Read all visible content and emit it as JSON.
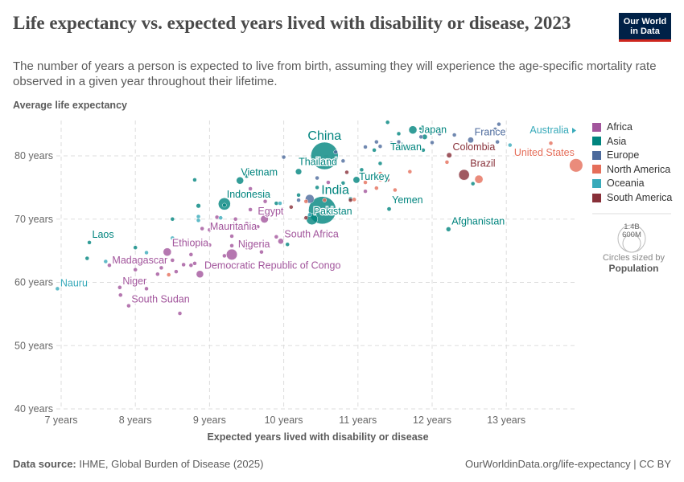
{
  "header": {
    "title": "Life expectancy vs. expected years lived with disability or disease, 2023",
    "subtitle": "The number of years a person is expected to live from birth, assuming they will experience the age-specific mortality rate observed in a given year throughout their lifetime.",
    "logo": "Our World in Data"
  },
  "footer": {
    "source_label": "Data source:",
    "source": "IHME, Global Burden of Disease (2025)",
    "link": "OurWorldinData.org/life-expectancy | CC BY"
  },
  "legend": {
    "items": [
      {
        "label": "Africa",
        "color": "#a2559c"
      },
      {
        "label": "Asia",
        "color": "#00847e"
      },
      {
        "label": "Europe",
        "color": "#4c6a9c"
      },
      {
        "label": "North America",
        "color": "#e56e5a"
      },
      {
        "label": "Oceania",
        "color": "#38aaba"
      },
      {
        "label": "South America",
        "color": "#883039"
      }
    ],
    "size_title": "Circles sized by",
    "size_var": "Population",
    "size_big": "1.4B",
    "size_small": "600M"
  },
  "chart_data": {
    "type": "scatter",
    "xlabel": "Expected years lived with disability or disease",
    "ylabel": "Average life expectancy",
    "xlim": [
      6.85,
      14.0
    ],
    "ylim": [
      40,
      86
    ],
    "x_ticks": [
      {
        "v": 7,
        "label": "7 years"
      },
      {
        "v": 8,
        "label": "8 years"
      },
      {
        "v": 9,
        "label": "9 years"
      },
      {
        "v": 10,
        "label": "10 years"
      },
      {
        "v": 11,
        "label": "11 years"
      },
      {
        "v": 12,
        "label": "12 years"
      },
      {
        "v": 13,
        "label": "13 years"
      }
    ],
    "y_ticks": [
      {
        "v": 40,
        "label": "40 years"
      },
      {
        "v": 50,
        "label": "50 years"
      },
      {
        "v": 60,
        "label": "60 years"
      },
      {
        "v": 70,
        "label": "70 years"
      },
      {
        "v": 80,
        "label": "80 years"
      }
    ],
    "grid": true,
    "legend_placement": "right",
    "points": [
      {
        "name": "China",
        "region": "Asia",
        "x": 10.55,
        "y": 80.0,
        "pop": 1410,
        "label": true,
        "big": true
      },
      {
        "name": "India",
        "region": "Asia",
        "x": 10.52,
        "y": 71.4,
        "pop": 1430,
        "label": true,
        "big": true
      },
      {
        "name": "Pakistan",
        "region": "Asia",
        "x": 10.38,
        "y": 70.0,
        "pop": 240,
        "label": true
      },
      {
        "name": "Thailand",
        "region": "Asia",
        "x": 10.2,
        "y": 77.5,
        "pop": 72,
        "label": true
      },
      {
        "name": "Vietnam",
        "region": "Asia",
        "x": 9.41,
        "y": 76.1,
        "pop": 99,
        "label": true
      },
      {
        "name": "Indonesia",
        "region": "Asia",
        "x": 9.2,
        "y": 72.4,
        "pop": 280,
        "label": true
      },
      {
        "name": "Laos",
        "region": "Asia",
        "x": 7.38,
        "y": 66.3,
        "pop": 8,
        "label": true
      },
      {
        "name": "Japan",
        "region": "Asia",
        "x": 11.74,
        "y": 84.1,
        "pop": 124,
        "label": true
      },
      {
        "name": "Taiwan",
        "region": "Asia",
        "x": 11.88,
        "y": 80.9,
        "pop": 23,
        "label": true
      },
      {
        "name": "Turkey",
        "region": "Asia",
        "x": 10.98,
        "y": 76.2,
        "pop": 85,
        "label": true
      },
      {
        "name": "Yemen",
        "region": "Asia",
        "x": 11.42,
        "y": 71.6,
        "pop": 34,
        "label": true
      },
      {
        "name": "Afghanistan",
        "region": "Asia",
        "x": 12.22,
        "y": 68.4,
        "pop": 42,
        "label": true
      },
      {
        "name": "Egypt",
        "region": "Africa",
        "x": 9.74,
        "y": 70.0,
        "pop": 112,
        "label": true
      },
      {
        "name": "Mauritania",
        "region": "Africa",
        "x": 9.65,
        "y": 68.8,
        "pop": 5,
        "label": true
      },
      {
        "name": "South Africa",
        "region": "Africa",
        "x": 9.96,
        "y": 66.5,
        "pop": 60,
        "label": true
      },
      {
        "name": "Nigeria",
        "region": "Africa",
        "x": 9.3,
        "y": 64.4,
        "pop": 225,
        "label": true
      },
      {
        "name": "Ethiopia",
        "region": "Africa",
        "x": 8.43,
        "y": 64.8,
        "pop": 125,
        "label": true
      },
      {
        "name": "Democratic Republic of Congo",
        "region": "Africa",
        "x": 8.87,
        "y": 61.3,
        "pop": 100,
        "label": true
      },
      {
        "name": "Madagascar",
        "region": "Africa",
        "x": 7.65,
        "y": 62.7,
        "pop": 30,
        "label": true
      },
      {
        "name": "Niger",
        "region": "Africa",
        "x": 7.79,
        "y": 59.2,
        "pop": 27,
        "label": true
      },
      {
        "name": "South Sudan",
        "region": "Africa",
        "x": 7.91,
        "y": 56.3,
        "pop": 11,
        "label": true
      },
      {
        "name": "Nauru",
        "region": "Oceania",
        "x": 6.95,
        "y": 59.0,
        "pop": 0.01,
        "label": true
      },
      {
        "name": "France",
        "region": "Europe",
        "x": 12.52,
        "y": 82.5,
        "pop": 65,
        "label": true
      },
      {
        "name": "Colombia",
        "region": "South America",
        "x": 12.23,
        "y": 80.1,
        "pop": 52,
        "label": true
      },
      {
        "name": "Brazil",
        "region": "South America",
        "x": 12.43,
        "y": 77.0,
        "pop": 215,
        "label": true
      },
      {
        "name": "United States",
        "region": "North America",
        "x": 13.94,
        "y": 78.5,
        "pop": 335,
        "label": true
      },
      {
        "name": "Australia",
        "region": "Oceania",
        "x": 14.2,
        "y": 84.0,
        "pop": 26,
        "label": true,
        "offchart": true
      },
      {
        "region": "North America",
        "x": 12.63,
        "y": 76.3,
        "pop": 128
      },
      {
        "region": "Asia",
        "x": 12.55,
        "y": 75.6,
        "pop": 5
      },
      {
        "region": "North America",
        "x": 13.6,
        "y": 82.0,
        "pop": 10
      },
      {
        "region": "Oceania",
        "x": 13.05,
        "y": 81.7,
        "pop": 5
      },
      {
        "region": "Europe",
        "x": 12.9,
        "y": 85.0,
        "pop": 5
      },
      {
        "region": "Europe",
        "x": 12.85,
        "y": 84.2,
        "pop": 5
      },
      {
        "region": "Europe",
        "x": 12.88,
        "y": 82.2,
        "pop": 5
      },
      {
        "region": "Europe",
        "x": 12.1,
        "y": 83.5,
        "pop": 5
      },
      {
        "region": "Europe",
        "x": 12.3,
        "y": 83.3,
        "pop": 5
      },
      {
        "region": "Europe",
        "x": 12.0,
        "y": 82.1,
        "pop": 5
      },
      {
        "region": "Europe",
        "x": 11.85,
        "y": 83.0,
        "pop": 10
      },
      {
        "region": "Europe",
        "x": 11.55,
        "y": 82.2,
        "pop": 10
      },
      {
        "region": "Europe",
        "x": 11.3,
        "y": 81.5,
        "pop": 5
      },
      {
        "region": "Europe",
        "x": 11.1,
        "y": 81.4,
        "pop": 5
      },
      {
        "region": "Europe",
        "x": 10.7,
        "y": 80.6,
        "pop": 5
      },
      {
        "region": "Europe",
        "x": 10.0,
        "y": 79.8,
        "pop": 5
      },
      {
        "region": "Europe",
        "x": 10.8,
        "y": 79.2,
        "pop": 20
      },
      {
        "region": "Europe",
        "x": 10.45,
        "y": 76.5,
        "pop": 5
      },
      {
        "region": "Europe",
        "x": 10.35,
        "y": 73.2,
        "pop": 145
      },
      {
        "region": "Europe",
        "x": 10.2,
        "y": 73.0,
        "pop": 10
      },
      {
        "region": "Europe",
        "x": 11.45,
        "y": 82.0,
        "pop": 5
      },
      {
        "region": "Europe",
        "x": 11.25,
        "y": 82.2,
        "pop": 5
      },
      {
        "region": "Asia",
        "x": 11.9,
        "y": 83.0,
        "pop": 52
      },
      {
        "region": "Asia",
        "x": 11.55,
        "y": 83.5,
        "pop": 10
      },
      {
        "region": "Asia",
        "x": 11.85,
        "y": 84.3,
        "pop": 8
      },
      {
        "region": "Asia",
        "x": 11.4,
        "y": 85.3,
        "pop": 5
      },
      {
        "region": "Asia",
        "x": 11.22,
        "y": 80.9,
        "pop": 5
      },
      {
        "region": "Asia",
        "x": 11.3,
        "y": 78.8,
        "pop": 10
      },
      {
        "region": "Asia",
        "x": 10.8,
        "y": 75.7,
        "pop": 10
      },
      {
        "region": "Asia",
        "x": 10.9,
        "y": 73.2,
        "pop": 5
      },
      {
        "region": "Asia",
        "x": 9.5,
        "y": 76.8,
        "pop": 5
      },
      {
        "region": "Asia",
        "x": 8.8,
        "y": 76.2,
        "pop": 5
      },
      {
        "region": "Asia",
        "x": 8.85,
        "y": 72.1,
        "pop": 40
      },
      {
        "region": "Asia",
        "x": 8.5,
        "y": 70.0,
        "pop": 5
      },
      {
        "region": "Asia",
        "x": 9.2,
        "y": 72.2,
        "pop": 10
      },
      {
        "region": "Asia",
        "x": 7.35,
        "y": 63.8,
        "pop": 5
      },
      {
        "region": "Asia",
        "x": 8.0,
        "y": 65.5,
        "pop": 17
      },
      {
        "region": "Asia",
        "x": 9.9,
        "y": 72.5,
        "pop": 5
      },
      {
        "region": "Asia",
        "x": 10.45,
        "y": 75.0,
        "pop": 5
      },
      {
        "region": "Asia",
        "x": 10.2,
        "y": 73.8,
        "pop": 5
      },
      {
        "region": "Asia",
        "x": 9.8,
        "y": 73.8,
        "pop": 5
      },
      {
        "region": "Asia",
        "x": 10.05,
        "y": 66.0,
        "pop": 5
      },
      {
        "region": "Asia",
        "x": 11.05,
        "y": 77.8,
        "pop": 5
      },
      {
        "region": "Oceania",
        "x": 8.85,
        "y": 70.4,
        "pop": 3
      },
      {
        "region": "Oceania",
        "x": 8.85,
        "y": 69.8,
        "pop": 3
      },
      {
        "region": "Oceania",
        "x": 8.15,
        "y": 64.7,
        "pop": 3
      },
      {
        "region": "Oceania",
        "x": 7.6,
        "y": 63.3,
        "pop": 3
      },
      {
        "region": "Oceania",
        "x": 8.5,
        "y": 67.0,
        "pop": 3
      },
      {
        "region": "Oceania",
        "x": 9.15,
        "y": 70.2,
        "pop": 3
      },
      {
        "region": "Oceania",
        "x": 10.35,
        "y": 70.7,
        "pop": 3
      },
      {
        "region": "Oceania",
        "x": 9.6,
        "y": 74.0,
        "pop": 3
      },
      {
        "region": "Oceania",
        "x": 9.95,
        "y": 72.5,
        "pop": 3
      },
      {
        "region": "North America",
        "x": 11.3,
        "y": 77.2,
        "pop": 5
      },
      {
        "region": "North America",
        "x": 11.7,
        "y": 77.5,
        "pop": 5
      },
      {
        "region": "North America",
        "x": 12.2,
        "y": 79.0,
        "pop": 5
      },
      {
        "region": "North America",
        "x": 11.3,
        "y": 76.2,
        "pop": 5
      },
      {
        "region": "North America",
        "x": 11.5,
        "y": 74.6,
        "pop": 5
      },
      {
        "region": "North America",
        "x": 10.95,
        "y": 73.1,
        "pop": 5
      },
      {
        "region": "North America",
        "x": 11.1,
        "y": 75.8,
        "pop": 5
      },
      {
        "region": "North America",
        "x": 10.55,
        "y": 73.0,
        "pop": 5
      },
      {
        "region": "North America",
        "x": 10.3,
        "y": 72.8,
        "pop": 5
      },
      {
        "region": "North America",
        "x": 8.45,
        "y": 61.2,
        "pop": 10
      },
      {
        "region": "North America",
        "x": 11.25,
        "y": 74.9,
        "pop": 5
      },
      {
        "region": "South America",
        "x": 10.1,
        "y": 71.9,
        "pop": 10
      },
      {
        "region": "South America",
        "x": 10.85,
        "y": 77.4,
        "pop": 20
      },
      {
        "region": "South America",
        "x": 11.4,
        "y": 76.2,
        "pop": 5
      },
      {
        "region": "South America",
        "x": 11.7,
        "y": 81.1,
        "pop": 5
      },
      {
        "region": "South America",
        "x": 10.3,
        "y": 70.2,
        "pop": 5
      },
      {
        "region": "South America",
        "x": 10.9,
        "y": 73.0,
        "pop": 5
      },
      {
        "region": "Africa",
        "x": 9.55,
        "y": 74.8,
        "pop": 5
      },
      {
        "region": "Africa",
        "x": 9.55,
        "y": 71.5,
        "pop": 5
      },
      {
        "region": "Africa",
        "x": 9.1,
        "y": 70.3,
        "pop": 20
      },
      {
        "region": "Africa",
        "x": 9.35,
        "y": 70.0,
        "pop": 10
      },
      {
        "region": "Africa",
        "x": 8.9,
        "y": 68.5,
        "pop": 5
      },
      {
        "region": "Africa",
        "x": 9.0,
        "y": 68.3,
        "pop": 5
      },
      {
        "region": "Africa",
        "x": 9.3,
        "y": 67.3,
        "pop": 5
      },
      {
        "region": "Africa",
        "x": 9.3,
        "y": 65.8,
        "pop": 5
      },
      {
        "region": "Africa",
        "x": 9.0,
        "y": 65.9,
        "pop": 5
      },
      {
        "region": "Africa",
        "x": 9.5,
        "y": 65.5,
        "pop": 5
      },
      {
        "region": "Africa",
        "x": 9.7,
        "y": 64.8,
        "pop": 10
      },
      {
        "region": "Africa",
        "x": 9.9,
        "y": 67.2,
        "pop": 5
      },
      {
        "region": "Africa",
        "x": 8.75,
        "y": 64.4,
        "pop": 10
      },
      {
        "region": "Africa",
        "x": 8.75,
        "y": 62.7,
        "pop": 5
      },
      {
        "region": "Africa",
        "x": 8.8,
        "y": 63.0,
        "pop": 5
      },
      {
        "region": "Africa",
        "x": 8.55,
        "y": 61.7,
        "pop": 5
      },
      {
        "region": "Africa",
        "x": 8.3,
        "y": 61.3,
        "pop": 10
      },
      {
        "region": "Africa",
        "x": 8.35,
        "y": 62.3,
        "pop": 10
      },
      {
        "region": "Africa",
        "x": 8.0,
        "y": 62.0,
        "pop": 5
      },
      {
        "region": "Africa",
        "x": 7.8,
        "y": 58.0,
        "pop": 5
      },
      {
        "region": "Africa",
        "x": 8.15,
        "y": 59.0,
        "pop": 5
      },
      {
        "region": "Africa",
        "x": 8.6,
        "y": 55.1,
        "pop": 5
      },
      {
        "region": "Africa",
        "x": 9.5,
        "y": 69.3,
        "pop": 5
      },
      {
        "region": "Africa",
        "x": 9.2,
        "y": 64.2,
        "pop": 5
      },
      {
        "region": "Africa",
        "x": 10.6,
        "y": 75.8,
        "pop": 5
      },
      {
        "region": "Africa",
        "x": 11.1,
        "y": 74.4,
        "pop": 5
      },
      {
        "region": "Africa",
        "x": 9.75,
        "y": 72.8,
        "pop": 5
      },
      {
        "region": "Africa",
        "x": 8.5,
        "y": 63.5,
        "pop": 5
      },
      {
        "region": "Africa",
        "x": 8.65,
        "y": 62.8,
        "pop": 5
      }
    ]
  }
}
